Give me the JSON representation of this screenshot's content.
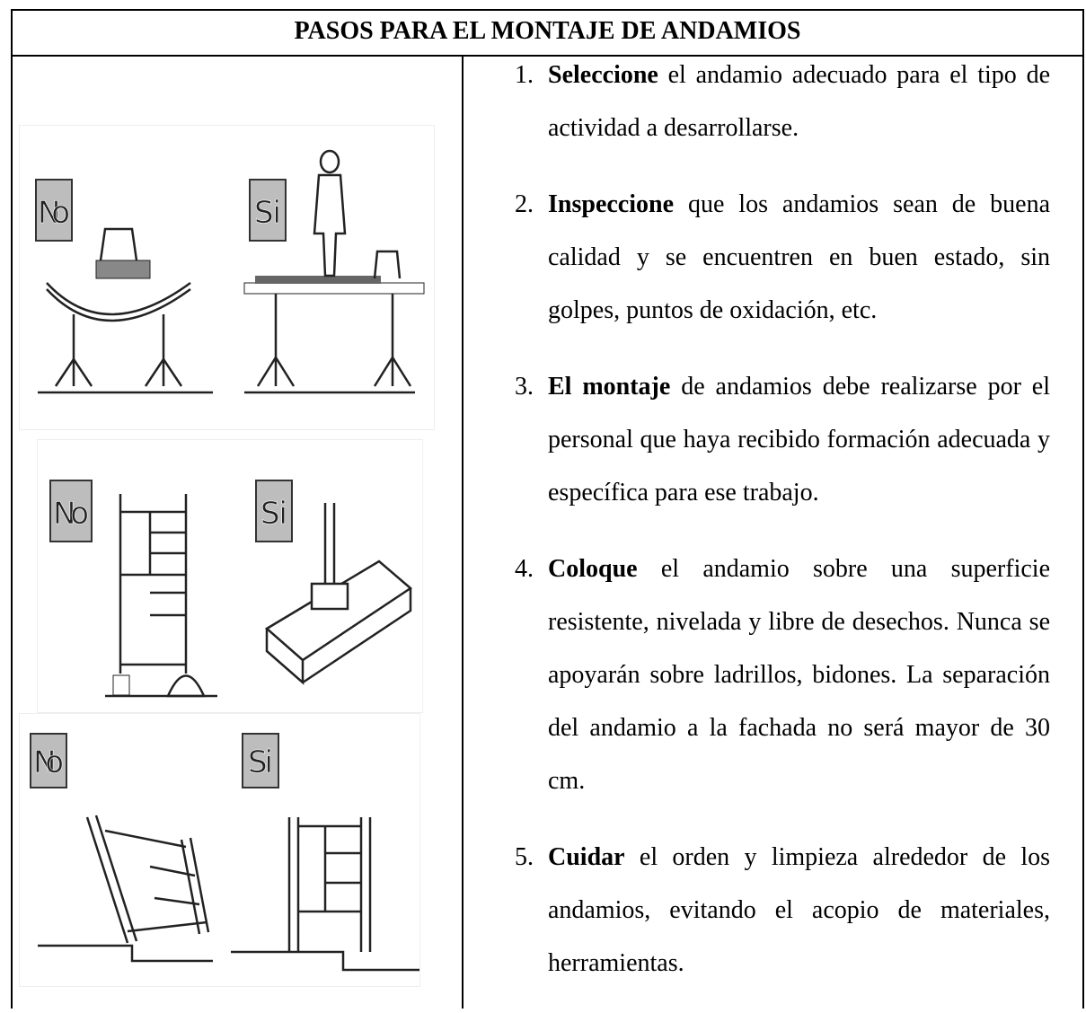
{
  "header": {
    "title": "PASOS PARA EL MONTAJE DE ANDAMIOS"
  },
  "illustrations": [
    {
      "no": "No",
      "si": "Si"
    },
    {
      "no": "No",
      "si": "Si"
    },
    {
      "no": "No",
      "si": "Si"
    }
  ],
  "steps": [
    {
      "number": "1.",
      "lead": "Seleccione",
      "text": "el andamio adecuado para el tipo de actividad a desarrollarse."
    },
    {
      "number": "2.",
      "lead": "Inspeccione",
      "text": "que los andamios sean de buena calidad y se encuentren en buen estado, sin golpes, puntos de oxidación, etc."
    },
    {
      "number": "3.",
      "lead": "El montaje",
      "text": "de andamios debe realizarse por el personal que haya recibido formación adecuada y específica para ese trabajo."
    },
    {
      "number": "4.",
      "lead": "Coloque",
      "text": "el andamio sobre una superficie resistente, nivelada y libre de desechos. Nunca se apoyarán sobre ladrillos, bidones. La separación del andamio a la fachada no será mayor de 30 cm."
    },
    {
      "number": "5.",
      "lead": "Cuidar",
      "text": "el orden y limpieza alrededor de los andamios, evitando el acopio de materiales, herramientas."
    }
  ]
}
